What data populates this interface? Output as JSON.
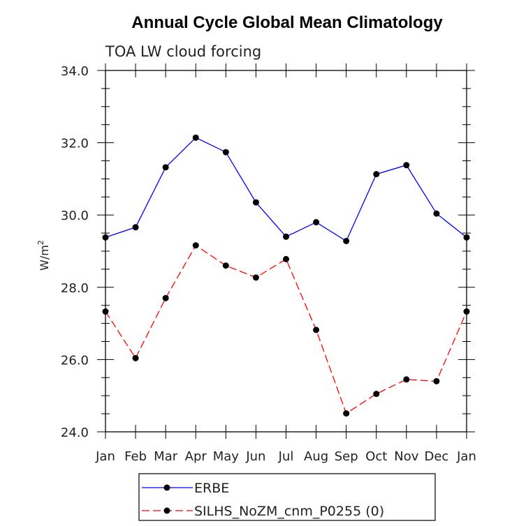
{
  "chart_data": {
    "type": "line",
    "title": "Annual Cycle Global Mean Climatology",
    "subtitle": "TOA LW cloud forcing",
    "xlabel": "",
    "ylabel": "W/m",
    "ylabel_superscript": "2",
    "ylim": [
      24.0,
      34.0
    ],
    "yticks": [
      "24.0",
      "26.0",
      "28.0",
      "30.0",
      "32.0",
      "34.0"
    ],
    "categories": [
      "Jan",
      "Feb",
      "Mar",
      "Apr",
      "May",
      "Jun",
      "Jul",
      "Aug",
      "Sep",
      "Oct",
      "Nov",
      "Dec",
      "Jan"
    ],
    "series": [
      {
        "name": "ERBE",
        "color": "#0000ff",
        "dash": "solid",
        "values": [
          29.38,
          29.66,
          31.32,
          32.14,
          31.74,
          30.35,
          29.4,
          29.8,
          29.28,
          31.13,
          31.38,
          30.04,
          29.38
        ]
      },
      {
        "name": "SILHS_NoZM_cnm_P0255 (0)",
        "color": "#ff0000",
        "dash": "dashed",
        "values": [
          27.33,
          26.04,
          27.7,
          29.16,
          28.6,
          28.27,
          28.78,
          26.82,
          24.51,
          25.05,
          25.45,
          25.4,
          27.33
        ]
      }
    ],
    "legend_position": "bottom-center"
  }
}
